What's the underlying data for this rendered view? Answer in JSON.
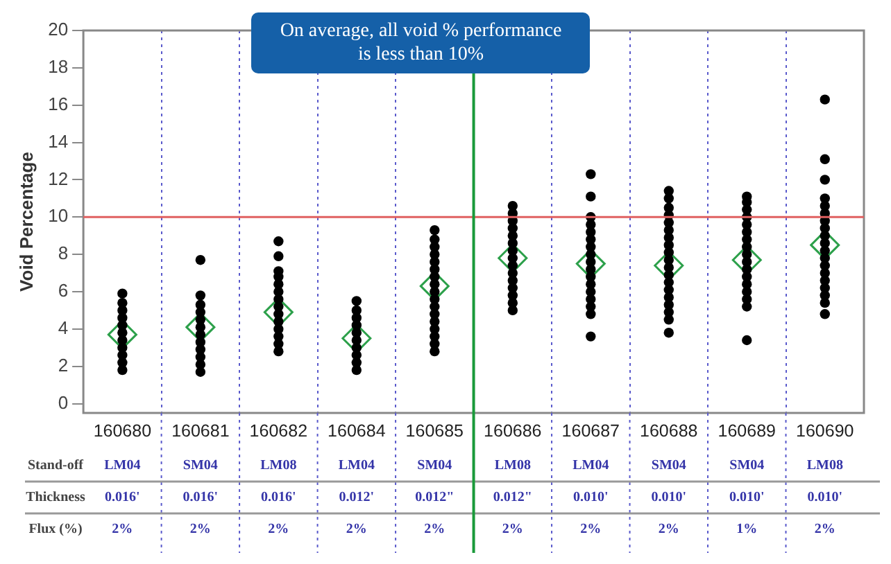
{
  "chart_data": {
    "type": "scatter",
    "ylabel": "Void Percentage",
    "categories": [
      "160680",
      "160681",
      "160682",
      "160684",
      "160685",
      "160686",
      "160687",
      "160688",
      "160689",
      "160690"
    ],
    "series": [
      {
        "color": "#000000",
        "marker": "circle",
        "x": [
          "160680",
          "160680",
          "160680",
          "160680",
          "160680",
          "160680",
          "160680",
          "160680",
          "160680",
          "160680",
          "160680",
          "160681",
          "160681",
          "160681",
          "160681",
          "160681",
          "160681",
          "160681",
          "160681",
          "160681",
          "160681",
          "160681",
          "160681",
          "160682",
          "160682",
          "160682",
          "160682",
          "160682",
          "160682",
          "160682",
          "160682",
          "160682",
          "160682",
          "160682",
          "160682",
          "160682",
          "160682",
          "160684",
          "160684",
          "160684",
          "160684",
          "160684",
          "160684",
          "160684",
          "160684",
          "160684",
          "160684",
          "160685",
          "160685",
          "160685",
          "160685",
          "160685",
          "160685",
          "160685",
          "160685",
          "160685",
          "160685",
          "160685",
          "160685",
          "160685",
          "160685",
          "160685",
          "160685",
          "160685",
          "160686",
          "160686",
          "160686",
          "160686",
          "160686",
          "160686",
          "160686",
          "160686",
          "160686",
          "160686",
          "160686",
          "160686",
          "160686",
          "160686",
          "160686",
          "160687",
          "160687",
          "160687",
          "160687",
          "160687",
          "160687",
          "160687",
          "160687",
          "160687",
          "160687",
          "160687",
          "160687",
          "160687",
          "160687",
          "160687",
          "160687",
          "160687",
          "160688",
          "160688",
          "160688",
          "160688",
          "160688",
          "160688",
          "160688",
          "160688",
          "160688",
          "160688",
          "160688",
          "160688",
          "160688",
          "160688",
          "160688",
          "160688",
          "160688",
          "160688",
          "160688",
          "160689",
          "160689",
          "160689",
          "160689",
          "160689",
          "160689",
          "160689",
          "160689",
          "160689",
          "160689",
          "160689",
          "160689",
          "160689",
          "160689",
          "160689",
          "160689",
          "160689",
          "160690",
          "160690",
          "160690",
          "160690",
          "160690",
          "160690",
          "160690",
          "160690",
          "160690",
          "160690",
          "160690",
          "160690",
          "160690",
          "160690",
          "160690",
          "160690",
          "160690",
          "160690",
          "160690"
        ],
        "values": [
          1.8,
          2.2,
          2.6,
          3.0,
          3.4,
          3.8,
          4.2,
          4.6,
          5.0,
          5.4,
          5.9,
          1.7,
          2.1,
          2.5,
          2.9,
          3.3,
          3.7,
          4.1,
          4.5,
          4.9,
          5.3,
          5.8,
          7.7,
          2.8,
          3.2,
          3.6,
          4.0,
          4.4,
          4.8,
          5.2,
          5.6,
          6.0,
          6.4,
          6.8,
          7.1,
          7.9,
          8.7,
          1.8,
          2.2,
          2.6,
          3.0,
          3.4,
          3.8,
          4.2,
          4.6,
          5.0,
          5.5,
          2.8,
          3.2,
          3.6,
          4.0,
          4.4,
          4.8,
          5.2,
          5.6,
          6.0,
          6.4,
          6.8,
          7.2,
          7.6,
          8.0,
          8.4,
          8.8,
          9.3,
          5.0,
          5.4,
          5.8,
          6.2,
          6.6,
          7.0,
          7.4,
          7.8,
          8.2,
          8.6,
          9.0,
          9.4,
          9.8,
          10.2,
          10.6,
          3.6,
          4.8,
          5.2,
          5.6,
          6.0,
          6.4,
          6.8,
          7.2,
          7.6,
          8.0,
          8.4,
          8.8,
          9.2,
          9.6,
          10.0,
          11.1,
          12.3,
          3.8,
          4.5,
          4.9,
          5.3,
          5.7,
          6.1,
          6.5,
          6.9,
          7.3,
          7.7,
          8.1,
          8.5,
          8.9,
          9.3,
          9.7,
          10.1,
          10.5,
          11.0,
          11.4,
          3.4,
          5.2,
          5.6,
          6.0,
          6.4,
          6.8,
          7.2,
          7.6,
          8.0,
          8.4,
          8.8,
          9.2,
          9.6,
          10.0,
          10.4,
          10.8,
          11.1,
          4.8,
          5.4,
          5.8,
          6.2,
          6.6,
          7.0,
          7.4,
          7.8,
          8.2,
          8.6,
          9.0,
          9.4,
          9.8,
          10.2,
          10.6,
          11.0,
          12.0,
          13.1,
          16.3
        ]
      },
      {
        "color": "#2ca04a",
        "marker": "diamond",
        "values": [
          3.7,
          4.1,
          4.9,
          3.5,
          6.3,
          7.8,
          7.5,
          7.4,
          7.7,
          8.5
        ]
      }
    ],
    "ylim": [
      -0.5,
      20
    ],
    "yticks": [
      0,
      2,
      4,
      6,
      8,
      10,
      12,
      14,
      16,
      18,
      20
    ],
    "grid": "x",
    "legend": false,
    "ref_lines": [
      {
        "axis": "y",
        "value": 10,
        "color": "#e06060"
      },
      {
        "axis": "x",
        "value": "160686",
        "color": "#1a9a3a"
      }
    ],
    "annotations": [
      "On average, all void % performance is less than 10%",
      "Stand-off",
      "LM04",
      "SM04",
      "LM08",
      "LM04",
      "SM04",
      "LM08",
      "LM04",
      "SM04",
      "SM04",
      "LM08",
      "Thickness",
      "0.016'",
      "0.016'",
      "0.016'",
      "0.012'",
      "0.012\"",
      "0.012\"",
      "0.010'",
      "0.010'",
      "0.010'",
      "0.010'",
      "Flux (%)",
      "2%",
      "2%",
      "2%",
      "2%",
      "2%",
      "2%",
      "2%",
      "2%",
      "1%",
      "2%"
    ]
  }
}
